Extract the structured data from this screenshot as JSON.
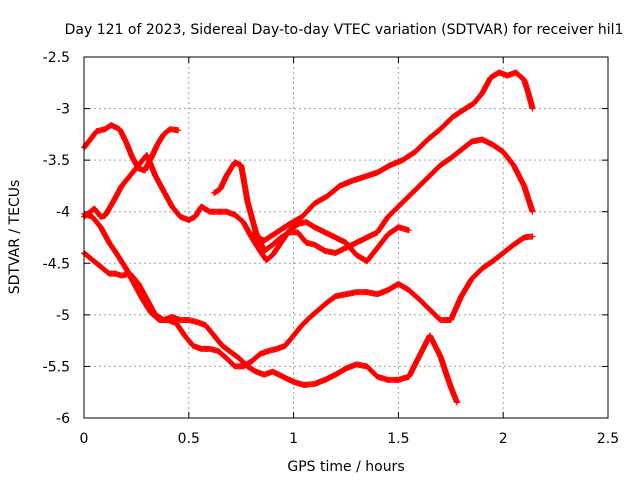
{
  "chart_data": {
    "type": "scatter",
    "title": "Day 121 of 2023, Sidereal Day-to-day VTEC variation (SDTVAR) for receiver hil1",
    "xlabel": "GPS time / hours",
    "ylabel": "SDTVAR / TECUs",
    "xlim": [
      0,
      2.5
    ],
    "ylim": [
      -6,
      -2.5
    ],
    "xticks": [
      0,
      0.5,
      1,
      1.5,
      2,
      2.5
    ],
    "xtick_labels": [
      "0",
      "0.5",
      "1",
      "1.5",
      "2",
      "2.5"
    ],
    "yticks": [
      -6,
      -5.5,
      -5,
      -4.5,
      -4,
      -3.5,
      -3,
      -2.5
    ],
    "ytick_labels": [
      "-6",
      "-5.5",
      "-5",
      "-4.5",
      "-4",
      "-3.5",
      "-3",
      "-2.5"
    ],
    "grid": true,
    "marker": "+",
    "color": "#ff0000",
    "series": [
      {
        "x": [
          0,
          0.03,
          0.06,
          0.1,
          0.13,
          0.17,
          0.2,
          0.23,
          0.26,
          0.29,
          0.32,
          0.35,
          0.38,
          0.41,
          0.45
        ],
        "y": [
          -3.38,
          -3.3,
          -3.22,
          -3.2,
          -3.16,
          -3.2,
          -3.32,
          -3.47,
          -3.58,
          -3.6,
          -3.48,
          -3.35,
          -3.25,
          -3.2,
          -3.21
        ]
      },
      {
        "x": [
          0,
          0.03,
          0.05,
          0.08,
          0.1,
          0.14,
          0.18,
          0.22,
          0.26,
          0.3,
          0.34,
          0.38,
          0.42,
          0.46,
          0.5,
          0.53,
          0.56,
          0.6,
          0.64,
          0.68,
          0.72,
          0.76,
          0.8,
          0.84,
          0.87,
          0.9,
          0.94,
          0.98,
          1.02,
          1.06,
          1.1,
          1.15,
          1.2,
          1.25,
          1.3,
          1.35,
          1.4,
          1.45,
          1.5,
          1.55
        ],
        "y": [
          -4.05,
          -4.0,
          -3.97,
          -4.05,
          -4.04,
          -3.9,
          -3.75,
          -3.65,
          -3.55,
          -3.45,
          -3.65,
          -3.8,
          -3.95,
          -4.05,
          -4.08,
          -4.05,
          -3.95,
          -4.0,
          -4.0,
          -4.0,
          -4.03,
          -4.1,
          -4.25,
          -4.38,
          -4.47,
          -4.42,
          -4.3,
          -4.18,
          -4.12,
          -4.1,
          -4.15,
          -4.2,
          -4.25,
          -4.3,
          -4.42,
          -4.48,
          -4.35,
          -4.22,
          -4.15,
          -4.18
        ]
      },
      {
        "x": [
          0,
          0.03,
          0.06,
          0.09,
          0.12,
          0.15,
          0.18,
          0.22,
          0.26,
          0.3,
          0.34,
          0.38,
          0.42,
          0.46,
          0.5,
          0.54,
          0.58,
          0.62,
          0.66,
          0.7,
          0.74,
          0.78,
          0.82,
          0.86,
          0.9,
          0.95,
          1.0,
          1.05,
          1.1,
          1.15,
          1.2,
          1.25,
          1.3,
          1.35,
          1.4,
          1.45,
          1.5,
          1.55,
          1.6,
          1.65,
          1.7,
          1.75,
          1.78
        ],
        "y": [
          -4.4,
          -4.45,
          -4.5,
          -4.55,
          -4.6,
          -4.6,
          -4.62,
          -4.6,
          -4.7,
          -4.85,
          -5.0,
          -5.05,
          -5.02,
          -5.05,
          -5.05,
          -5.07,
          -5.1,
          -5.2,
          -5.3,
          -5.36,
          -5.42,
          -5.5,
          -5.55,
          -5.58,
          -5.55,
          -5.6,
          -5.65,
          -5.68,
          -5.67,
          -5.63,
          -5.58,
          -5.52,
          -5.48,
          -5.5,
          -5.6,
          -5.63,
          -5.63,
          -5.6,
          -5.4,
          -5.2,
          -5.4,
          -5.7,
          -5.85
        ]
      },
      {
        "x": [
          0,
          0.04,
          0.08,
          0.12,
          0.16,
          0.2,
          0.24,
          0.28,
          0.32,
          0.36,
          0.4,
          0.44,
          0.48,
          0.52,
          0.56,
          0.6,
          0.64,
          0.68,
          0.72,
          0.76,
          0.8,
          0.84,
          0.88,
          0.92,
          0.96,
          1.0,
          1.04,
          1.08,
          1.12,
          1.16,
          1.2,
          1.25,
          1.3,
          1.35,
          1.4,
          1.45,
          1.5,
          1.55,
          1.6,
          1.65,
          1.7,
          1.75,
          1.8,
          1.85,
          1.9,
          1.95,
          2.0,
          2.05,
          2.1,
          2.14
        ],
        "y": [
          -4.02,
          -4.05,
          -4.15,
          -4.3,
          -4.42,
          -4.55,
          -4.7,
          -4.85,
          -4.98,
          -5.05,
          -5.05,
          -5.08,
          -5.2,
          -5.3,
          -5.33,
          -5.33,
          -5.35,
          -5.42,
          -5.5,
          -5.5,
          -5.45,
          -5.38,
          -5.35,
          -5.33,
          -5.3,
          -5.2,
          -5.1,
          -5.02,
          -4.95,
          -4.88,
          -4.82,
          -4.8,
          -4.78,
          -4.78,
          -4.8,
          -4.76,
          -4.7,
          -4.76,
          -4.85,
          -4.95,
          -5.05,
          -5.05,
          -4.82,
          -4.65,
          -4.55,
          -4.48,
          -4.4,
          -4.32,
          -4.25,
          -4.24
        ]
      },
      {
        "x": [
          0.62,
          0.65,
          0.68,
          0.72,
          0.75,
          0.78,
          0.82,
          0.86,
          0.9,
          0.94,
          0.98,
          1.02,
          1.06,
          1.1,
          1.15,
          1.2,
          1.25,
          1.3,
          1.35,
          1.4,
          1.45,
          1.5,
          1.55,
          1.6,
          1.65,
          1.7,
          1.75,
          1.8,
          1.85,
          1.9,
          1.95,
          2.0,
          2.05,
          2.1,
          2.14
        ],
        "y": [
          -3.82,
          -3.78,
          -3.65,
          -3.52,
          -3.55,
          -3.9,
          -4.2,
          -4.38,
          -4.32,
          -4.25,
          -4.2,
          -4.2,
          -4.3,
          -4.32,
          -4.38,
          -4.4,
          -4.35,
          -4.3,
          -4.25,
          -4.2,
          -4.05,
          -3.95,
          -3.85,
          -3.75,
          -3.65,
          -3.55,
          -3.48,
          -3.4,
          -3.32,
          -3.3,
          -3.35,
          -3.42,
          -3.55,
          -3.75,
          -4.0
        ]
      },
      {
        "x": [
          0.8,
          0.86,
          0.92,
          0.98,
          1.04,
          1.1,
          1.16,
          1.22,
          1.28,
          1.34,
          1.4,
          1.46,
          1.52,
          1.58,
          1.64,
          1.7,
          1.76,
          1.82,
          1.86,
          1.9,
          1.94,
          1.98,
          2.02,
          2.06,
          2.1,
          2.12,
          2.14
        ],
        "y": [
          -4.22,
          -4.28,
          -4.2,
          -4.12,
          -4.05,
          -3.92,
          -3.85,
          -3.75,
          -3.7,
          -3.66,
          -3.62,
          -3.55,
          -3.5,
          -3.42,
          -3.3,
          -3.2,
          -3.08,
          -3.0,
          -2.95,
          -2.85,
          -2.7,
          -2.65,
          -2.68,
          -2.65,
          -2.72,
          -2.85,
          -3.0
        ]
      }
    ]
  }
}
